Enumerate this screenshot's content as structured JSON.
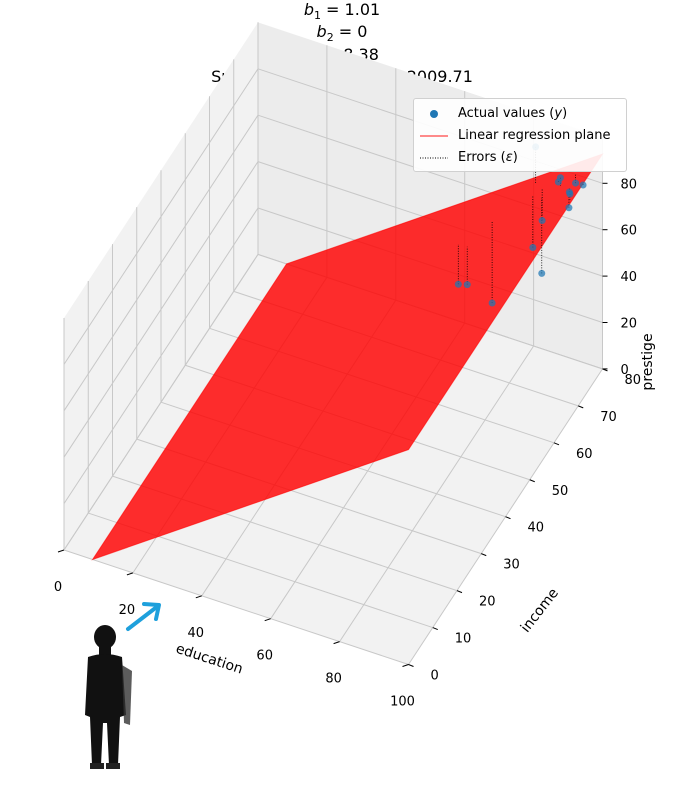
{
  "title": {
    "b1_label": "1",
    "b1_value": "1.01",
    "b2_label": "2",
    "b2_value": "0",
    "c_value": "-8.38",
    "sse_text": "Sum of Squared Error = 2009.71"
  },
  "legend": {
    "actual": "Actual values",
    "actual_sym": "y",
    "plane": "Linear regression plane",
    "errors": "Errors",
    "errors_sym": "ε"
  },
  "colors": {
    "points": "#1f77b4",
    "plane": "#ff0000",
    "errors": "#000000",
    "arrow": "#1ea0dc"
  },
  "chart_data": {
    "type": "scatter3d",
    "xlabel": "education",
    "ylabel": "income",
    "zlabel": "prestige",
    "xlim": [
      0,
      100
    ],
    "ylim": [
      0,
      80
    ],
    "zlim": [
      0,
      100
    ],
    "xticks": [
      0,
      20,
      40,
      60,
      80,
      100
    ],
    "yticks": [
      0,
      10,
      20,
      30,
      40,
      50,
      60,
      70,
      80
    ],
    "zticks": [
      0,
      20,
      40,
      60,
      80
    ],
    "grid": true,
    "plane": {
      "b1": 1.01,
      "b2": 0,
      "c": -8.38,
      "x_range": [
        0,
        100
      ],
      "y_range": [
        0,
        80
      ]
    },
    "points": [
      {
        "x": 99,
        "y": 68,
        "z": 94
      },
      {
        "x": 100,
        "y": 72,
        "z": 92
      },
      {
        "x": 98,
        "y": 69,
        "z": 86
      },
      {
        "x": 96,
        "y": 72,
        "z": 87
      },
      {
        "x": 92,
        "y": 74,
        "z": 88
      },
      {
        "x": 95,
        "y": 76,
        "z": 84
      },
      {
        "x": 90,
        "y": 76,
        "z": 82
      },
      {
        "x": 82,
        "y": 78,
        "z": 90
      },
      {
        "x": 86,
        "y": 75,
        "z": 65
      },
      {
        "x": 88,
        "y": 72,
        "z": 48
      },
      {
        "x": 84,
        "y": 74,
        "z": 54
      },
      {
        "x": 72,
        "y": 64,
        "z": 48
      },
      {
        "x": 68,
        "y": 66,
        "z": 43
      },
      {
        "x": 75,
        "y": 70,
        "z": 32
      }
    ],
    "legend_position": "top-right"
  }
}
